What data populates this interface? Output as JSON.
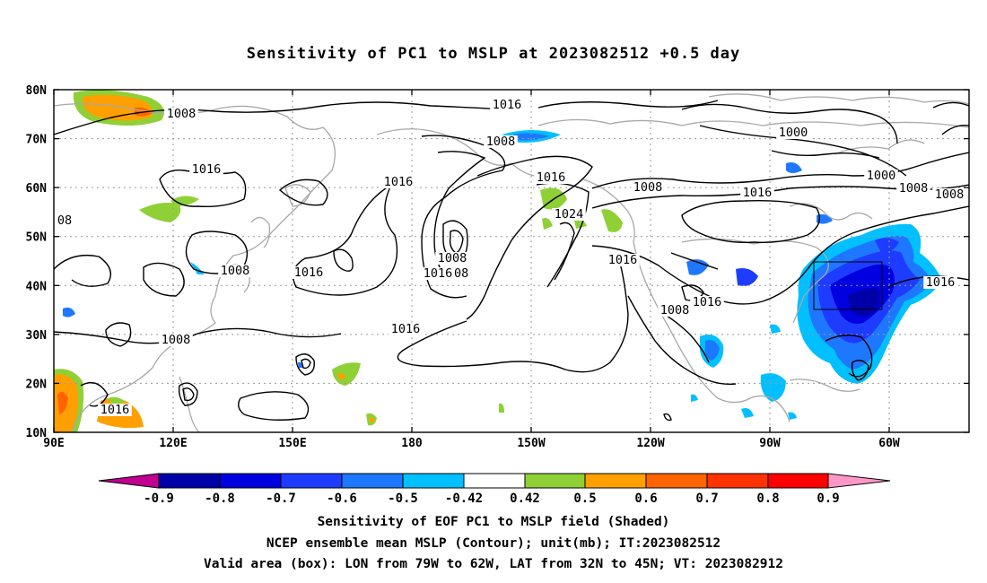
{
  "title": "Sensitivity of PC1 to MSLP at 2023082512 +0.5 day",
  "map": {
    "lat_labels": [
      "80N",
      "70N",
      "60N",
      "50N",
      "40N",
      "30N",
      "20N",
      "10N"
    ],
    "lon_labels": [
      "90E",
      "120E",
      "150E",
      "180",
      "150W",
      "120W",
      "90W",
      "60W"
    ],
    "contour_labels": [
      "1008",
      "1016",
      "1008",
      "1016",
      "1016",
      "1000",
      "1008",
      "1000",
      "1008",
      "1016",
      "1008",
      "1016",
      "1024",
      "1008",
      "1016",
      "1016",
      "1008",
      "1016",
      "1016",
      "1016",
      "1008",
      "1008",
      "08",
      "1008",
      "1016",
      "1016",
      "1016"
    ],
    "box": {
      "lon_from": "79W",
      "lon_to": "62W",
      "lat_from": "32N",
      "lat_to": "45N"
    }
  },
  "colorbar": {
    "labels": [
      "-0.9",
      "-0.8",
      "-0.7",
      "-0.6",
      "-0.5",
      "-0.42",
      "0.42",
      "0.5",
      "0.6",
      "0.7",
      "0.8",
      "0.9"
    ],
    "colors": [
      "#c0008f",
      "#0000a8",
      "#0000e0",
      "#1e3cff",
      "#1e78ff",
      "#00c0ff",
      "#ffffff",
      "#8fd036",
      "#ffa000",
      "#ff6400",
      "#ff3200",
      "#ff0000",
      "#ff96c8"
    ]
  },
  "captions": {
    "line1": "Sensitivity of EOF PC1 to MSLP field (Shaded)",
    "line2": "NCEP ensemble mean MSLP (Contour); unit(mb); IT:2023082512",
    "line3": "Valid area (box): LON from 79W to 62W, LAT from 32N to 45N; VT: 2023082912"
  }
}
